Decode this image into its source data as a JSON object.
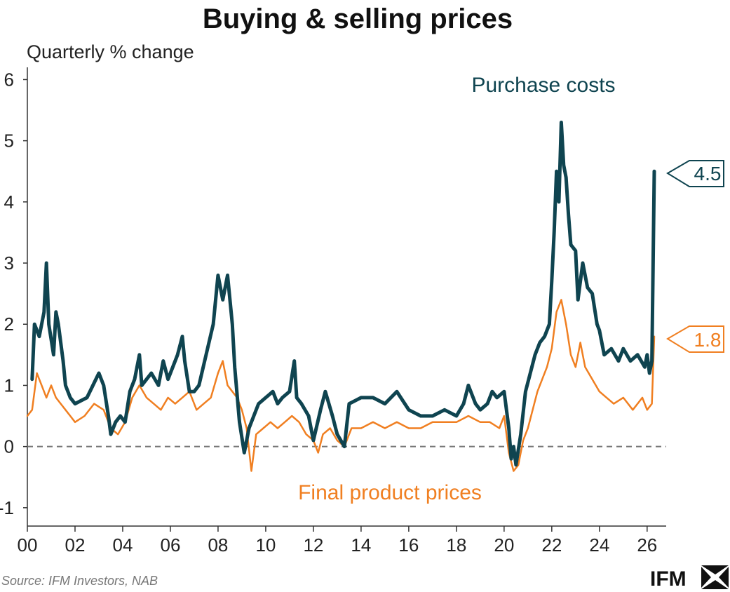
{
  "chart_data": {
    "type": "line",
    "title": "Buying & selling prices",
    "ylabel": "Quarterly % change",
    "xlim": [
      2000,
      2026.8
    ],
    "ylim": [
      -1.3,
      6.2
    ],
    "yticks": [
      -1,
      0,
      1,
      2,
      3,
      4,
      5,
      6
    ],
    "ytick_labels": [
      "-1",
      "0",
      "1",
      "2",
      "3",
      "4",
      "5",
      "6"
    ],
    "xticks": [
      2000,
      2002,
      2004,
      2006,
      2008,
      2010,
      2012,
      2014,
      2016,
      2018,
      2020,
      2022,
      2024,
      2026
    ],
    "xtick_labels": [
      "00",
      "02",
      "04",
      "06",
      "08",
      "10",
      "12",
      "14",
      "16",
      "18",
      "20",
      "22",
      "24",
      "26"
    ],
    "reference_line": {
      "y": 0,
      "style": "dashed"
    },
    "grid": false,
    "series": [
      {
        "name": "Purchase costs",
        "color": "#0f4450",
        "x": [
          2000.2,
          2000.3,
          2000.5,
          2000.7,
          2000.8,
          2000.9,
          2001.1,
          2001.2,
          2001.3,
          2001.5,
          2001.6,
          2001.8,
          2002.0,
          2002.5,
          2003.0,
          2003.2,
          2003.4,
          2003.5,
          2003.7,
          2003.9,
          2004.1,
          2004.3,
          2004.5,
          2004.7,
          2004.8,
          2005.0,
          2005.2,
          2005.5,
          2005.7,
          2005.9,
          2006.1,
          2006.3,
          2006.5,
          2006.6,
          2006.8,
          2007.0,
          2007.2,
          2007.5,
          2007.8,
          2008.0,
          2008.2,
          2008.4,
          2008.6,
          2008.7,
          2008.9,
          2009.1,
          2009.3,
          2009.5,
          2009.7,
          2010.0,
          2010.3,
          2010.5,
          2010.7,
          2011.0,
          2011.2,
          2011.3,
          2011.5,
          2011.8,
          2012.0,
          2012.3,
          2012.5,
          2012.8,
          2013.0,
          2013.3,
          2013.5,
          2014.0,
          2014.5,
          2015.0,
          2015.5,
          2016.0,
          2016.5,
          2017.0,
          2017.5,
          2018.0,
          2018.3,
          2018.5,
          2018.8,
          2019.0,
          2019.3,
          2019.5,
          2019.7,
          2020.0,
          2020.2,
          2020.3,
          2020.4,
          2020.5,
          2020.7,
          2020.9,
          2021.1,
          2021.3,
          2021.5,
          2021.7,
          2021.9,
          2022.0,
          2022.1,
          2022.2,
          2022.3,
          2022.4,
          2022.5,
          2022.6,
          2022.7,
          2022.8,
          2023.0,
          2023.1,
          2023.3,
          2023.5,
          2023.7,
          2023.9,
          2024.0,
          2024.2,
          2024.5,
          2024.8,
          2025.0,
          2025.3,
          2025.6,
          2025.9,
          2026.0,
          2026.1,
          2026.2,
          2026.3
        ],
        "values": [
          1.1,
          2.0,
          1.8,
          2.2,
          3.0,
          2.0,
          1.5,
          2.2,
          2.0,
          1.4,
          1.0,
          0.8,
          0.7,
          0.8,
          1.2,
          1.0,
          0.5,
          0.2,
          0.4,
          0.5,
          0.4,
          0.9,
          1.1,
          1.5,
          1.0,
          1.1,
          1.2,
          1.0,
          1.4,
          1.1,
          1.3,
          1.5,
          1.8,
          1.4,
          0.9,
          0.9,
          1.0,
          1.5,
          2.0,
          2.8,
          2.4,
          2.8,
          2.0,
          1.3,
          0.4,
          -0.1,
          0.3,
          0.5,
          0.7,
          0.8,
          0.9,
          0.7,
          0.8,
          0.9,
          1.4,
          0.8,
          0.7,
          0.5,
          0.1,
          0.6,
          0.9,
          0.5,
          0.2,
          0.0,
          0.7,
          0.8,
          0.8,
          0.7,
          0.9,
          0.6,
          0.5,
          0.5,
          0.6,
          0.5,
          0.7,
          1.0,
          0.7,
          0.6,
          0.7,
          0.9,
          0.8,
          0.9,
          0.3,
          -0.2,
          0.0,
          -0.3,
          0.2,
          0.9,
          1.2,
          1.5,
          1.7,
          1.8,
          2.0,
          2.7,
          3.5,
          4.5,
          4.0,
          5.3,
          4.6,
          4.4,
          3.8,
          3.3,
          3.2,
          2.4,
          3.0,
          2.6,
          2.5,
          2.0,
          1.9,
          1.5,
          1.6,
          1.4,
          1.6,
          1.4,
          1.5,
          1.3,
          1.5,
          1.2,
          1.4,
          4.5
        ]
      },
      {
        "name": "Final product prices",
        "color": "#f07f21",
        "x": [
          2000.0,
          2000.2,
          2000.4,
          2000.6,
          2000.8,
          2001.0,
          2001.2,
          2001.4,
          2001.6,
          2001.8,
          2002.0,
          2002.4,
          2002.8,
          2003.2,
          2003.5,
          2003.8,
          2004.1,
          2004.4,
          2004.7,
          2005.0,
          2005.3,
          2005.6,
          2005.9,
          2006.2,
          2006.5,
          2006.8,
          2007.1,
          2007.4,
          2007.7,
          2008.0,
          2008.2,
          2008.4,
          2008.6,
          2008.8,
          2009.0,
          2009.2,
          2009.4,
          2009.6,
          2009.9,
          2010.2,
          2010.5,
          2010.8,
          2011.1,
          2011.4,
          2011.7,
          2012.0,
          2012.2,
          2012.4,
          2012.7,
          2013.0,
          2013.3,
          2013.6,
          2014.0,
          2014.5,
          2015.0,
          2015.5,
          2016.0,
          2016.5,
          2017.0,
          2017.5,
          2018.0,
          2018.5,
          2019.0,
          2019.4,
          2019.8,
          2020.0,
          2020.2,
          2020.4,
          2020.6,
          2020.8,
          2021.0,
          2021.2,
          2021.4,
          2021.6,
          2021.8,
          2022.0,
          2022.2,
          2022.4,
          2022.6,
          2022.8,
          2023.0,
          2023.2,
          2023.4,
          2023.7,
          2024.0,
          2024.3,
          2024.6,
          2025.0,
          2025.4,
          2025.8,
          2026.0,
          2026.2,
          2026.3
        ],
        "values": [
          0.5,
          0.6,
          1.2,
          1.0,
          0.8,
          1.0,
          0.8,
          0.7,
          0.6,
          0.5,
          0.4,
          0.5,
          0.7,
          0.6,
          0.3,
          0.2,
          0.4,
          0.8,
          1.0,
          0.8,
          0.7,
          0.6,
          0.8,
          0.7,
          0.8,
          0.9,
          0.6,
          0.7,
          0.8,
          1.2,
          1.4,
          1.0,
          0.9,
          0.8,
          0.6,
          0.3,
          -0.4,
          0.2,
          0.3,
          0.4,
          0.3,
          0.4,
          0.5,
          0.4,
          0.2,
          0.1,
          -0.1,
          0.2,
          0.3,
          0.1,
          0.0,
          0.3,
          0.3,
          0.4,
          0.3,
          0.4,
          0.3,
          0.3,
          0.4,
          0.4,
          0.4,
          0.5,
          0.4,
          0.4,
          0.3,
          0.5,
          -0.1,
          -0.4,
          -0.3,
          0.1,
          0.3,
          0.6,
          0.9,
          1.1,
          1.3,
          1.6,
          2.2,
          2.4,
          2.0,
          1.5,
          1.3,
          1.7,
          1.3,
          1.1,
          0.9,
          0.8,
          0.7,
          0.8,
          0.6,
          0.8,
          0.6,
          0.7,
          1.8
        ]
      }
    ],
    "annotations": [
      {
        "text": "Purchase costs",
        "color": "#0f4450"
      },
      {
        "text": "Final product prices",
        "color": "#f07f21"
      },
      {
        "text": "4.5",
        "color": "#0f4450"
      },
      {
        "text": "1.8",
        "color": "#f07f21"
      }
    ],
    "source": "Source: IFM Investors, NAB",
    "logo_text": "IFM"
  }
}
